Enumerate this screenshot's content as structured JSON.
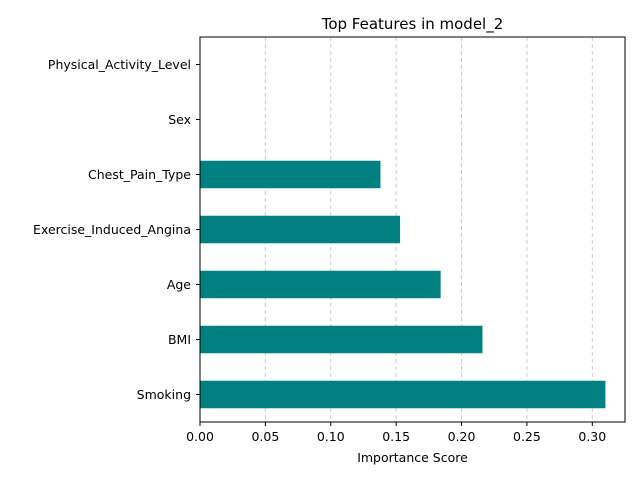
{
  "chart_data": {
    "type": "bar",
    "orientation": "horizontal",
    "title": "Top Features in model_2",
    "xlabel": "Importance Score",
    "ylabel": "",
    "categories": [
      "Smoking",
      "BMI",
      "Age",
      "Exercise_Induced_Angina",
      "Chest_Pain_Type",
      "Sex",
      "Physical_Activity_Level"
    ],
    "values": [
      0.31,
      0.216,
      0.184,
      0.153,
      0.138,
      0.0,
      0.0
    ],
    "xlim": [
      0,
      0.325
    ],
    "xticks": [
      0.0,
      0.05,
      0.1,
      0.15,
      0.2,
      0.25,
      0.3
    ],
    "xtick_labels": [
      "0.00",
      "0.05",
      "0.10",
      "0.15",
      "0.20",
      "0.25",
      "0.30"
    ],
    "grid": "vertical dashed",
    "legend": "none",
    "bar_color": "#008080"
  }
}
